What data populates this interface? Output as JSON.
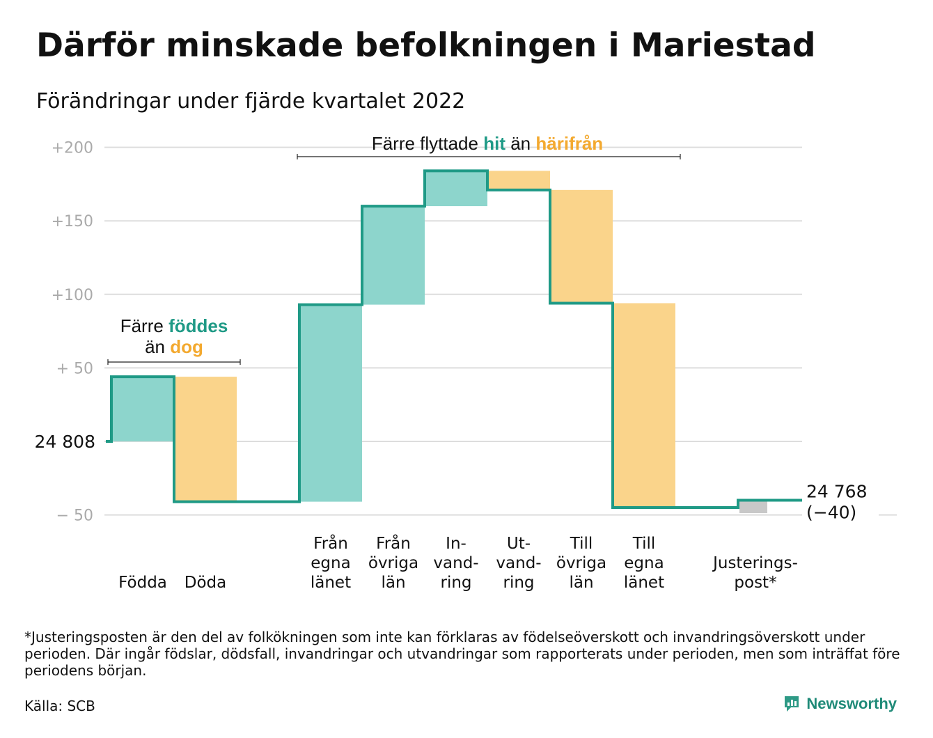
{
  "header": {
    "title": "Därför minskade befolkningen i Mariestad",
    "subtitle": "Förändringar under fjärde kvartalet 2022"
  },
  "annotations": {
    "births_line1": "Färre",
    "births_word1": "föddes",
    "births_line2": "än",
    "births_word2": "dog",
    "moves_prefix": "Färre flyttade",
    "moves_word1": "hit",
    "moves_mid": "än",
    "moves_word2": "härifrån"
  },
  "colors": {
    "inflow": "#8dd5cc",
    "outflow": "#fad48b",
    "adjustment": "#c8c8c8",
    "line": "#1f9a86",
    "green_text": "#1f9a86",
    "orange_text": "#f3a92f",
    "grid": "#dddddd",
    "tick_text": "#aaaaaa"
  },
  "chart_data": {
    "type": "waterfall",
    "title": "Därför minskade befolkningen i Mariestad",
    "subtitle": "Förändringar under fjärde kvartalet 2022",
    "start_value": 24808,
    "start_label": "24 808",
    "end_value": 24768,
    "end_label": "24 768",
    "end_change_label": "(−40)",
    "y_ticks": [
      {
        "value": 200,
        "label": "+200"
      },
      {
        "value": 150,
        "label": "+150"
      },
      {
        "value": 100,
        "label": "+100"
      },
      {
        "value": 50,
        "label": "+ 50"
      },
      {
        "value": 0,
        "label": ""
      },
      {
        "value": -50,
        "label": "− 50"
      }
    ],
    "ylim": [
      -50,
      200
    ],
    "grid": true,
    "categories": [
      {
        "label": "Födda",
        "lines": [
          "Födda"
        ],
        "change": 44,
        "kind": "inflow"
      },
      {
        "label": "Döda",
        "lines": [
          "Döda"
        ],
        "change": -85,
        "kind": "outflow"
      },
      {
        "label": "",
        "lines": [],
        "change": 0,
        "kind": "gap"
      },
      {
        "label": "Från egna länet",
        "lines": [
          "Från",
          "egna",
          "länet"
        ],
        "change": 134,
        "kind": "inflow"
      },
      {
        "label": "Från övriga län",
        "lines": [
          "Från",
          "övriga",
          "län"
        ],
        "change": 67,
        "kind": "inflow"
      },
      {
        "label": "In-vand-ring",
        "lines": [
          "In-",
          "vand-",
          "ring"
        ],
        "change": 24,
        "kind": "inflow"
      },
      {
        "label": "Ut-vand-ring",
        "lines": [
          "Ut-",
          "vand-",
          "ring"
        ],
        "change": -13,
        "kind": "outflow"
      },
      {
        "label": "Till övriga län",
        "lines": [
          "Till",
          "övriga",
          "län"
        ],
        "change": -77,
        "kind": "outflow"
      },
      {
        "label": "Till egna länet",
        "lines": [
          "Till",
          "egna",
          "länet"
        ],
        "change": -139,
        "kind": "outflow"
      },
      {
        "label": "",
        "lines": [],
        "change": 0,
        "kind": "gap"
      },
      {
        "label": "Justerings-post*",
        "lines": [
          "Justerings-",
          "post*"
        ],
        "change": 5,
        "kind": "adjustment"
      }
    ]
  },
  "footer": {
    "footnote": "*Justeringsposten är den del av folkökningen som inte kan förklaras av födelseöverskott och invandringsöverskott under perioden. Där ingår födslar, dödsfall, invandringar och utvandringar som rapporterats under perioden, men som inträffat före periodens början.",
    "source": "Källa: SCB",
    "brand": "Newsworthy",
    "brand_icon": "newsworthy-logo-icon"
  }
}
